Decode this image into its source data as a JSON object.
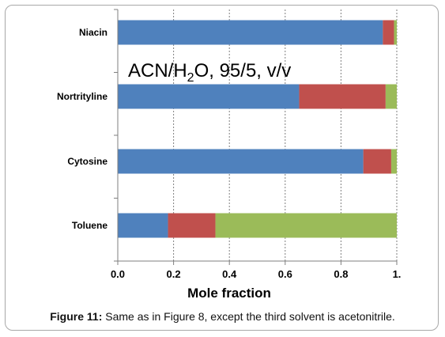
{
  "chart_data": {
    "type": "bar",
    "stacked": true,
    "orientation": "horizontal",
    "categories": [
      "Niacin",
      "Nortrityline",
      "Cytosine",
      "Toluene"
    ],
    "series": [
      {
        "values": [
          0.95,
          0.65,
          0.88,
          0.18
        ],
        "color": "#4f81bd"
      },
      {
        "values": [
          0.04,
          0.31,
          0.1,
          0.17
        ],
        "color": "#c0504d"
      },
      {
        "values": [
          0.01,
          0.04,
          0.02,
          0.65
        ],
        "color": "#9bbb59"
      }
    ],
    "xlim": [
      0,
      1
    ],
    "xticks": [
      "0.0",
      "0.2",
      "0.4",
      "0.6",
      "0.8",
      "1."
    ],
    "xlabel": "Mole fraction",
    "gridlines": "vertical dashed",
    "annotation": {
      "pre": "ACN/H",
      "sub": "2",
      "post": "O, 95/5, v/v"
    }
  },
  "caption": {
    "label": "Figure 11:",
    "text": " Same as in Figure 8, except the third solvent is acetonitrile."
  }
}
